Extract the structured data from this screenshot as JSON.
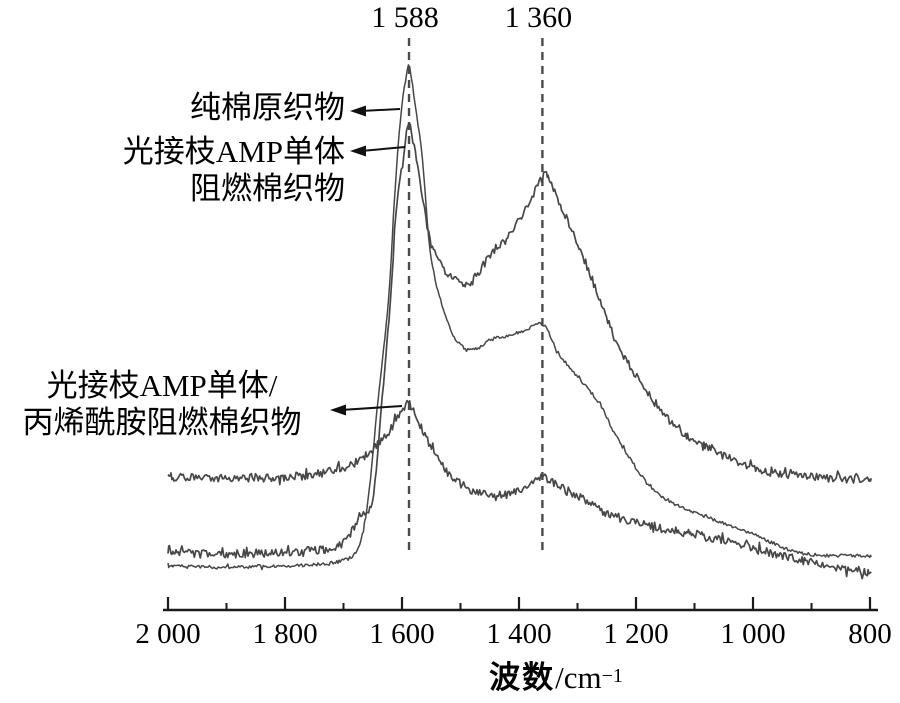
{
  "figure_type": "raman-spectra-figure",
  "colors": {
    "background": "#ffffff",
    "curve": "#474747",
    "dashed_guide": "#4a4a4a",
    "axis": "#1a1a1a",
    "text": "#000000"
  },
  "annotations": {
    "pure_cotton": {
      "line1": "纯棉原织物"
    },
    "amp_monomer": {
      "line1": "光接枝AMP单体",
      "line2": "阻燃棉织物"
    },
    "amp_acrylamide": {
      "line1": "光接枝AMP单体/",
      "line2": "丙烯酰胺阻燃棉织物"
    }
  },
  "chart_data": {
    "type": "line",
    "title": "",
    "xlabel": "波数/cm⁻¹",
    "xlabel_cjk": "波数",
    "xlabel_unit": "/cm",
    "xlabel_exponent": "−1",
    "ylabel": "",
    "x_range": [
      2000,
      800
    ],
    "x_axis_direction": "decreasing",
    "grid": false,
    "legend_position": "inline-annotations",
    "x_major_ticks": [
      2000,
      1800,
      1600,
      1400,
      1200,
      1000,
      800
    ],
    "x_tick_labels": [
      "2 000",
      "1 800",
      "1 600",
      "1 400",
      "1 200",
      "1 000",
      "800"
    ],
    "x_minor_ticks": [
      1900,
      1700,
      1500,
      1300,
      1100,
      900
    ],
    "peak_markers": [
      {
        "label": "1 588",
        "wavenumber": 1588
      },
      {
        "label": "1 360",
        "wavenumber": 1360
      }
    ],
    "intensity_units": "arbitrary units (no y-axis shown)",
    "series": [
      {
        "name": "纯棉原织物",
        "noise": 1.6,
        "seed": 7,
        "points": [
          [
            2000,
            44
          ],
          [
            1900,
            43
          ],
          [
            1800,
            44
          ],
          [
            1740,
            46
          ],
          [
            1700,
            50
          ],
          [
            1675,
            62
          ],
          [
            1658,
            110
          ],
          [
            1641,
            210
          ],
          [
            1623,
            310
          ],
          [
            1613,
            410
          ],
          [
            1603,
            490
          ],
          [
            1594,
            530
          ],
          [
            1589,
            545
          ],
          [
            1584,
            532
          ],
          [
            1577,
            503
          ],
          [
            1565,
            450
          ],
          [
            1552,
            360
          ],
          [
            1534,
            310
          ],
          [
            1517,
            280
          ],
          [
            1500,
            265
          ],
          [
            1478,
            260
          ],
          [
            1449,
            270
          ],
          [
            1415,
            275
          ],
          [
            1389,
            280
          ],
          [
            1358,
            285
          ],
          [
            1333,
            257
          ],
          [
            1295,
            230
          ],
          [
            1261,
            205
          ],
          [
            1227,
            167
          ],
          [
            1175,
            123
          ],
          [
            1124,
            103
          ],
          [
            1089,
            95
          ],
          [
            1004,
            77
          ],
          [
            918,
            57
          ],
          [
            798,
            54
          ]
        ]
      },
      {
        "name": "光接枝AMP单体阻燃棉织物",
        "noise": 4.2,
        "seed": 13,
        "points": [
          [
            2000,
            57
          ],
          [
            1900,
            56
          ],
          [
            1800,
            58
          ],
          [
            1730,
            61
          ],
          [
            1700,
            68
          ],
          [
            1675,
            90
          ],
          [
            1651,
            110
          ],
          [
            1634,
            210
          ],
          [
            1620,
            310
          ],
          [
            1608,
            410
          ],
          [
            1597,
            455
          ],
          [
            1588,
            487
          ],
          [
            1579,
            462
          ],
          [
            1569,
            430
          ],
          [
            1552,
            370
          ],
          [
            1526,
            338
          ],
          [
            1500,
            330
          ],
          [
            1483,
            327
          ],
          [
            1449,
            355
          ],
          [
            1415,
            378
          ],
          [
            1389,
            400
          ],
          [
            1358,
            434
          ],
          [
            1348,
            430
          ],
          [
            1329,
            405
          ],
          [
            1295,
            360
          ],
          [
            1261,
            310
          ],
          [
            1227,
            260
          ],
          [
            1175,
            213
          ],
          [
            1124,
            180
          ],
          [
            1089,
            167
          ],
          [
            1004,
            143
          ],
          [
            918,
            134
          ],
          [
            798,
            130
          ]
        ]
      },
      {
        "name": "光接枝AMP单体/丙烯酰胺阻燃棉织物",
        "noise": 4.2,
        "seed": 29,
        "points": [
          [
            2000,
            133
          ],
          [
            1900,
            132
          ],
          [
            1800,
            133
          ],
          [
            1750,
            136
          ],
          [
            1700,
            142
          ],
          [
            1660,
            155
          ],
          [
            1630,
            173
          ],
          [
            1610,
            190
          ],
          [
            1589,
            206
          ],
          [
            1569,
            185
          ],
          [
            1543,
            155
          ],
          [
            1517,
            135
          ],
          [
            1483,
            120
          ],
          [
            1449,
            115
          ],
          [
            1415,
            116
          ],
          [
            1389,
            122
          ],
          [
            1358,
            132
          ],
          [
            1329,
            123
          ],
          [
            1295,
            113
          ],
          [
            1261,
            100
          ],
          [
            1227,
            92
          ],
          [
            1175,
            85
          ],
          [
            1124,
            78
          ],
          [
            1089,
            75
          ],
          [
            1004,
            62
          ],
          [
            918,
            50
          ],
          [
            798,
            37
          ]
        ]
      }
    ]
  }
}
